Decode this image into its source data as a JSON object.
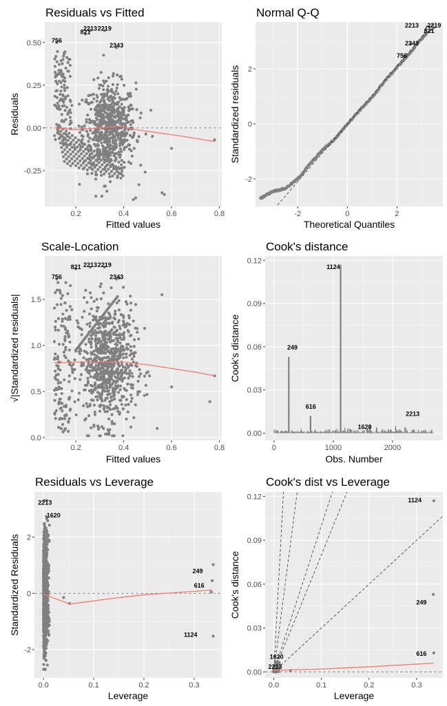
{
  "chart_data": [
    {
      "id": "p1",
      "type": "scatter",
      "title": "Residuals vs Fitted",
      "xlabel": "Fitted values",
      "ylabel": "Residuals",
      "xlim": [
        0.07,
        0.81
      ],
      "ylim": [
        -0.46,
        0.62
      ],
      "xticks": [
        0.2,
        0.4,
        0.6,
        0.8
      ],
      "yticks": [
        -0.25,
        0.0,
        0.25,
        0.5
      ],
      "ytick_labels": [
        "-0.25",
        "0.00",
        "0.25",
        "0.50"
      ],
      "refline": {
        "kind": "h",
        "value": 0
      },
      "smooth": [
        [
          0.11,
          0.0
        ],
        [
          0.2,
          -0.01
        ],
        [
          0.3,
          0.0
        ],
        [
          0.38,
          0.01
        ],
        [
          0.45,
          -0.01
        ],
        [
          0.55,
          -0.03
        ],
        [
          0.65,
          -0.05
        ],
        [
          0.78,
          -0.08
        ]
      ],
      "annotations": [
        {
          "label": "2213",
          "x": 0.26,
          "y": 0.57
        },
        {
          "label": "2219",
          "x": 0.32,
          "y": 0.57
        },
        {
          "label": "821",
          "x": 0.24,
          "y": 0.55
        },
        {
          "label": "756",
          "x": 0.12,
          "y": 0.5
        },
        {
          "label": "2343",
          "x": 0.37,
          "y": 0.47
        }
      ],
      "point_colour": "#808080",
      "line_colour": "#f8766d"
    },
    {
      "id": "p2",
      "type": "scatter",
      "title": "Normal Q-Q",
      "xlabel": "Theoretical Quantiles",
      "ylabel": "Standardized residuals",
      "xlim": [
        -3.7,
        3.85
      ],
      "ylim": [
        -3.0,
        3.7
      ],
      "xticks": [
        -2,
        0,
        2
      ],
      "yticks": [
        -2,
        0,
        2
      ],
      "refline": {
        "kind": "ab",
        "a": 0,
        "b": 1.05
      },
      "qq_curve": [
        [
          -3.5,
          -2.7
        ],
        [
          -3.0,
          -2.45
        ],
        [
          -2.5,
          -2.35
        ],
        [
          -2.0,
          -2.0
        ],
        [
          -1.5,
          -1.45
        ],
        [
          -1.0,
          -0.95
        ],
        [
          -0.5,
          -0.55
        ],
        [
          0.0,
          0.0
        ],
        [
          0.5,
          0.5
        ],
        [
          1.0,
          0.95
        ],
        [
          1.5,
          1.55
        ],
        [
          2.0,
          2.05
        ],
        [
          2.5,
          2.55
        ],
        [
          3.0,
          3.1
        ],
        [
          3.2,
          3.3
        ]
      ],
      "annotations": [
        {
          "label": "2213",
          "x": 2.6,
          "y": 3.5
        },
        {
          "label": "2219",
          "x": 3.5,
          "y": 3.5
        },
        {
          "label": "821",
          "x": 3.3,
          "y": 3.3
        },
        {
          "label": "2343",
          "x": 2.6,
          "y": 2.85
        },
        {
          "label": "756",
          "x": 2.2,
          "y": 2.4
        }
      ],
      "point_colour": "#808080"
    },
    {
      "id": "p3",
      "type": "scatter",
      "title": "Scale-Location",
      "xlabel": "Fitted values",
      "ylabel": "√|Standardized residuals|",
      "xlim": [
        0.07,
        0.81
      ],
      "ylim": [
        -0.03,
        1.97
      ],
      "xticks": [
        0.2,
        0.4,
        0.6,
        0.8
      ],
      "yticks": [
        0.0,
        0.5,
        1.0,
        1.5
      ],
      "ytick_labels": [
        "0.0",
        "0.5",
        "1.0",
        "1.5"
      ],
      "smooth": [
        [
          0.11,
          0.81
        ],
        [
          0.2,
          0.82
        ],
        [
          0.3,
          0.82
        ],
        [
          0.4,
          0.82
        ],
        [
          0.5,
          0.79
        ],
        [
          0.6,
          0.75
        ],
        [
          0.7,
          0.71
        ],
        [
          0.78,
          0.67
        ]
      ],
      "annotations": [
        {
          "label": "821",
          "x": 0.2,
          "y": 1.83
        },
        {
          "label": "2213",
          "x": 0.26,
          "y": 1.85
        },
        {
          "label": "2219",
          "x": 0.32,
          "y": 1.85
        },
        {
          "label": "756",
          "x": 0.12,
          "y": 1.72
        },
        {
          "label": "2343",
          "x": 0.37,
          "y": 1.72
        }
      ],
      "point_colour": "#808080",
      "line_colour": "#f8766d"
    },
    {
      "id": "p4",
      "type": "bar",
      "title": "Cook's distance",
      "xlabel": "Obs. Number",
      "ylabel": "Cook's distance",
      "xlim": [
        -150,
        2850
      ],
      "ylim": [
        -0.005,
        0.123
      ],
      "xticks": [
        0,
        1000,
        2000
      ],
      "yticks": [
        0.0,
        0.03,
        0.06,
        0.09,
        0.12
      ],
      "ytick_labels": [
        "0.00",
        "0.03",
        "0.06",
        "0.09",
        "0.12"
      ],
      "peaks": [
        {
          "obs": 249,
          "value": 0.053
        },
        {
          "obs": 616,
          "value": 0.012
        },
        {
          "obs": 1124,
          "value": 0.117
        },
        {
          "obs": 1620,
          "value": 0.006
        },
        {
          "obs": 2213,
          "value": 0.004
        }
      ],
      "annotations": [
        {
          "label": "1124",
          "x": 1000,
          "y": 0.114
        },
        {
          "label": "249",
          "x": 310,
          "y": 0.058
        },
        {
          "label": "616",
          "x": 620,
          "y": 0.017
        },
        {
          "label": "1620",
          "x": 1530,
          "y": 0.003
        },
        {
          "label": "2213",
          "x": 2340,
          "y": 0.012
        }
      ],
      "bar_colour": "#808080"
    },
    {
      "id": "p5",
      "type": "scatter",
      "title": "Residuals vs Leverage",
      "xlabel": "Leverage",
      "ylabel": "Standardized Residuals",
      "xlim": [
        -0.018,
        0.355
      ],
      "ylim": [
        -3.0,
        3.6
      ],
      "xticks": [
        0.0,
        0.1,
        0.2,
        0.3
      ],
      "xtick_labels": [
        "0.0",
        "0.1",
        "0.2",
        "0.3"
      ],
      "yticks": [
        -2,
        0,
        2
      ],
      "refline": {
        "kind": "h",
        "value": 0
      },
      "smooth": [
        [
          0.0,
          -0.02
        ],
        [
          0.01,
          -0.1
        ],
        [
          0.053,
          -0.38
        ],
        [
          0.12,
          -0.22
        ],
        [
          0.2,
          -0.05
        ],
        [
          0.3,
          0.07
        ],
        [
          0.335,
          0.12
        ]
      ],
      "extra_points": [
        [
          0.338,
          1.02
        ],
        [
          0.336,
          0.45
        ],
        [
          0.334,
          0.05
        ],
        [
          0.338,
          -1.52
        ],
        [
          0.052,
          -0.36
        ],
        [
          0.04,
          -0.15
        ]
      ],
      "annotations": [
        {
          "label": "2213",
          "x": 0.003,
          "y": 3.15
        },
        {
          "label": "1620",
          "x": 0.02,
          "y": 2.7
        },
        {
          "label": "249",
          "x": 0.307,
          "y": 0.72
        },
        {
          "label": "616",
          "x": 0.31,
          "y": 0.2
        },
        {
          "label": "1124",
          "x": 0.293,
          "y": -1.55
        }
      ],
      "point_colour": "#808080",
      "line_colour": "#f8766d"
    },
    {
      "id": "p6",
      "type": "scatter",
      "title": "Cook's dist vs Leverage",
      "xlabel": "Leverage",
      "ylabel": "Cook's distance",
      "xlim": [
        -0.018,
        0.355
      ],
      "ylim": [
        -0.004,
        0.123
      ],
      "xticks": [
        0.0,
        0.1,
        0.2,
        0.3
      ],
      "xtick_labels": [
        "0.0",
        "0.1",
        "0.2",
        "0.3"
      ],
      "yticks": [
        0.0,
        0.03,
        0.06,
        0.09,
        0.12
      ],
      "ytick_labels": [
        "0.00",
        "0.03",
        "0.06",
        "0.09",
        "0.12"
      ],
      "refline": {
        "kind": "h",
        "value": 0
      },
      "smooth": [
        [
          0.0,
          0.001
        ],
        [
          0.05,
          0.0015
        ],
        [
          0.1,
          0.002
        ],
        [
          0.2,
          0.0035
        ],
        [
          0.335,
          0.006
        ]
      ],
      "extra_points": [
        [
          0.336,
          0.117
        ],
        [
          0.335,
          0.053
        ],
        [
          0.336,
          0.013
        ],
        [
          0.035,
          0.001
        ],
        [
          0.006,
          0.006
        ],
        [
          0.004,
          0.003
        ]
      ],
      "fan_lines": [
        0.3,
        0.8,
        1.0,
        2.5,
        6.0
      ],
      "annotations": [
        {
          "label": "1124",
          "x": 0.296,
          "y": 0.116
        },
        {
          "label": "249",
          "x": 0.31,
          "y": 0.046
        },
        {
          "label": "616",
          "x": 0.31,
          "y": 0.011
        },
        {
          "label": "1620",
          "x": 0.006,
          "y": 0.009
        },
        {
          "label": "2213",
          "x": 0.003,
          "y": 0.002
        }
      ],
      "point_colour": "#808080",
      "line_colour": "#f8766d"
    }
  ]
}
